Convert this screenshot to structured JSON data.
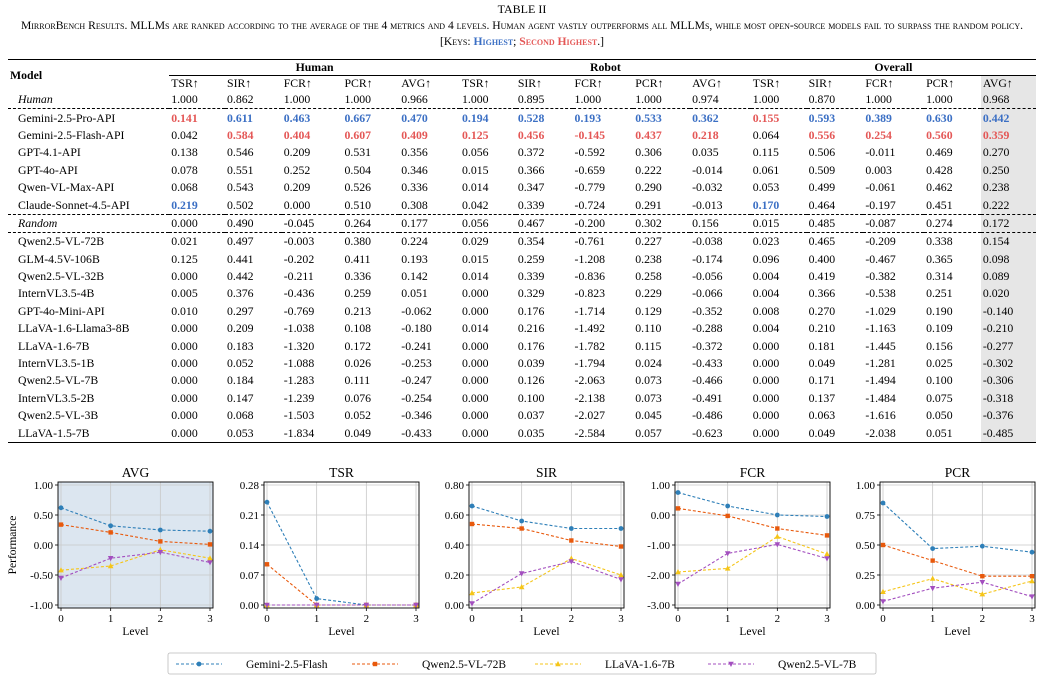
{
  "caption": {
    "label": "TABLE II",
    "text_main": "MirrorBench Results. MLLMs are ranked according to the average of the 4 metrics and 4 levels. Human agent vastly outperforms all MLLMs, while most open-source models fail to surpass the random policy. [Keys: ",
    "key_highest": "Highest",
    "key_sep": "; ",
    "key_second": "Second Highest",
    "key_end": ".]"
  },
  "table": {
    "model_header": "Model",
    "groups": [
      "Human",
      "Robot",
      "Overall"
    ],
    "metric_headers": [
      "TSR↑",
      "SIR↑",
      "FCR↑",
      "PCR↑",
      "AVG↑",
      "TSR↑",
      "SIR↑",
      "FCR↑",
      "PCR↑",
      "AVG↑",
      "TSR↑",
      "SIR↑",
      "FCR↑",
      "PCR↑",
      "AVG↑"
    ],
    "rows": [
      {
        "model": "Human",
        "italic": true,
        "dash": true,
        "values": [
          "1.000",
          "0.862",
          "1.000",
          "1.000",
          "0.966",
          "1.000",
          "0.895",
          "1.000",
          "1.000",
          "0.974",
          "1.000",
          "0.870",
          "1.000",
          "1.000",
          "0.968"
        ],
        "marks": [
          "",
          "",
          "",
          "",
          "",
          "",
          "",
          "",
          "",
          "",
          "",
          "",
          "",
          "",
          ""
        ]
      },
      {
        "model": "Gemini-2.5-Pro-API",
        "values": [
          "0.141",
          "0.611",
          "0.463",
          "0.667",
          "0.470",
          "0.194",
          "0.528",
          "0.193",
          "0.533",
          "0.362",
          "0.155",
          "0.593",
          "0.389",
          "0.630",
          "0.442"
        ],
        "marks": [
          "r",
          "b",
          "b",
          "b",
          "b",
          "b",
          "b",
          "b",
          "b",
          "b",
          "r",
          "b",
          "b",
          "b",
          "b"
        ]
      },
      {
        "model": "Gemini-2.5-Flash-API",
        "values": [
          "0.042",
          "0.584",
          "0.404",
          "0.607",
          "0.409",
          "0.125",
          "0.456",
          "-0.145",
          "0.437",
          "0.218",
          "0.064",
          "0.556",
          "0.254",
          "0.560",
          "0.359"
        ],
        "marks": [
          "",
          "r",
          "r",
          "r",
          "r",
          "r",
          "r",
          "r",
          "r",
          "r",
          "",
          "r",
          "r",
          "r",
          "r"
        ]
      },
      {
        "model": "GPT-4.1-API",
        "values": [
          "0.138",
          "0.546",
          "0.209",
          "0.531",
          "0.356",
          "0.056",
          "0.372",
          "-0.592",
          "0.306",
          "0.035",
          "0.115",
          "0.506",
          "-0.011",
          "0.469",
          "0.270"
        ],
        "marks": [
          "",
          "",
          "",
          "",
          "",
          "",
          "",
          "",
          "",
          "",
          "",
          "",
          "",
          "",
          ""
        ]
      },
      {
        "model": "GPT-4o-API",
        "values": [
          "0.078",
          "0.551",
          "0.252",
          "0.504",
          "0.346",
          "0.015",
          "0.366",
          "-0.659",
          "0.222",
          "-0.014",
          "0.061",
          "0.509",
          "0.003",
          "0.428",
          "0.250"
        ],
        "marks": [
          "",
          "",
          "",
          "",
          "",
          "",
          "",
          "",
          "",
          "",
          "",
          "",
          "",
          "",
          ""
        ]
      },
      {
        "model": "Qwen-VL-Max-API",
        "values": [
          "0.068",
          "0.543",
          "0.209",
          "0.526",
          "0.336",
          "0.014",
          "0.347",
          "-0.779",
          "0.290",
          "-0.032",
          "0.053",
          "0.499",
          "-0.061",
          "0.462",
          "0.238"
        ],
        "marks": [
          "",
          "",
          "",
          "",
          "",
          "",
          "",
          "",
          "",
          "",
          "",
          "",
          "",
          "",
          ""
        ]
      },
      {
        "model": "Claude-Sonnet-4.5-API",
        "dash": true,
        "values": [
          "0.219",
          "0.502",
          "0.000",
          "0.510",
          "0.308",
          "0.042",
          "0.339",
          "-0.724",
          "0.291",
          "-0.013",
          "0.170",
          "0.464",
          "-0.197",
          "0.451",
          "0.222"
        ],
        "marks": [
          "b",
          "",
          "",
          "",
          "",
          "",
          "",
          "",
          "",
          "",
          "b",
          "",
          "",
          "",
          ""
        ]
      },
      {
        "model": "Random",
        "italic": true,
        "dash": true,
        "values": [
          "0.000",
          "0.490",
          "-0.045",
          "0.264",
          "0.177",
          "0.056",
          "0.467",
          "-0.200",
          "0.302",
          "0.156",
          "0.015",
          "0.485",
          "-0.087",
          "0.274",
          "0.172"
        ],
        "marks": [
          "",
          "",
          "",
          "",
          "",
          "",
          "",
          "",
          "",
          "",
          "",
          "",
          "",
          "",
          ""
        ]
      },
      {
        "model": "Qwen2.5-VL-72B",
        "values": [
          "0.021",
          "0.497",
          "-0.003",
          "0.380",
          "0.224",
          "0.029",
          "0.354",
          "-0.761",
          "0.227",
          "-0.038",
          "0.023",
          "0.465",
          "-0.209",
          "0.338",
          "0.154"
        ],
        "marks": [
          "",
          "",
          "",
          "",
          "",
          "",
          "",
          "",
          "",
          "",
          "",
          "",
          "",
          "",
          ""
        ]
      },
      {
        "model": "GLM-4.5V-106B",
        "values": [
          "0.125",
          "0.441",
          "-0.202",
          "0.411",
          "0.193",
          "0.015",
          "0.259",
          "-1.208",
          "0.238",
          "-0.174",
          "0.096",
          "0.400",
          "-0.467",
          "0.365",
          "0.098"
        ],
        "marks": [
          "",
          "",
          "",
          "",
          "",
          "",
          "",
          "",
          "",
          "",
          "",
          "",
          "",
          "",
          ""
        ]
      },
      {
        "model": "Qwen2.5-VL-32B",
        "values": [
          "0.000",
          "0.442",
          "-0.211",
          "0.336",
          "0.142",
          "0.014",
          "0.339",
          "-0.836",
          "0.258",
          "-0.056",
          "0.004",
          "0.419",
          "-0.382",
          "0.314",
          "0.089"
        ],
        "marks": [
          "",
          "",
          "",
          "",
          "",
          "",
          "",
          "",
          "",
          "",
          "",
          "",
          "",
          "",
          ""
        ]
      },
      {
        "model": "InternVL3.5-4B",
        "values": [
          "0.005",
          "0.376",
          "-0.436",
          "0.259",
          "0.051",
          "0.000",
          "0.329",
          "-0.823",
          "0.229",
          "-0.066",
          "0.004",
          "0.366",
          "-0.538",
          "0.251",
          "0.020"
        ],
        "marks": [
          "",
          "",
          "",
          "",
          "",
          "",
          "",
          "",
          "",
          "",
          "",
          "",
          "",
          "",
          ""
        ]
      },
      {
        "model": "GPT-4o-Mini-API",
        "values": [
          "0.010",
          "0.297",
          "-0.769",
          "0.213",
          "-0.062",
          "0.000",
          "0.176",
          "-1.714",
          "0.129",
          "-0.352",
          "0.008",
          "0.270",
          "-1.029",
          "0.190",
          "-0.140"
        ],
        "marks": [
          "",
          "",
          "",
          "",
          "",
          "",
          "",
          "",
          "",
          "",
          "",
          "",
          "",
          "",
          ""
        ]
      },
      {
        "model": "LLaVA-1.6-Llama3-8B",
        "values": [
          "0.000",
          "0.209",
          "-1.038",
          "0.108",
          "-0.180",
          "0.014",
          "0.216",
          "-1.492",
          "0.110",
          "-0.288",
          "0.004",
          "0.210",
          "-1.163",
          "0.109",
          "-0.210"
        ],
        "marks": [
          "",
          "",
          "",
          "",
          "",
          "",
          "",
          "",
          "",
          "",
          "",
          "",
          "",
          "",
          ""
        ]
      },
      {
        "model": "LLaVA-1.6-7B",
        "values": [
          "0.000",
          "0.183",
          "-1.320",
          "0.172",
          "-0.241",
          "0.000",
          "0.176",
          "-1.782",
          "0.115",
          "-0.372",
          "0.000",
          "0.181",
          "-1.445",
          "0.156",
          "-0.277"
        ],
        "marks": [
          "",
          "",
          "",
          "",
          "",
          "",
          "",
          "",
          "",
          "",
          "",
          "",
          "",
          "",
          ""
        ]
      },
      {
        "model": "InternVL3.5-1B",
        "values": [
          "0.000",
          "0.052",
          "-1.088",
          "0.026",
          "-0.253",
          "0.000",
          "0.039",
          "-1.794",
          "0.024",
          "-0.433",
          "0.000",
          "0.049",
          "-1.281",
          "0.025",
          "-0.302"
        ],
        "marks": [
          "",
          "",
          "",
          "",
          "",
          "",
          "",
          "",
          "",
          "",
          "",
          "",
          "",
          "",
          ""
        ]
      },
      {
        "model": "Qwen2.5-VL-7B",
        "values": [
          "0.000",
          "0.184",
          "-1.283",
          "0.111",
          "-0.247",
          "0.000",
          "0.126",
          "-2.063",
          "0.073",
          "-0.466",
          "0.000",
          "0.171",
          "-1.494",
          "0.100",
          "-0.306"
        ],
        "marks": [
          "",
          "",
          "",
          "",
          "",
          "",
          "",
          "",
          "",
          "",
          "",
          "",
          "",
          "",
          ""
        ]
      },
      {
        "model": "InternVL3.5-2B",
        "values": [
          "0.000",
          "0.147",
          "-1.239",
          "0.076",
          "-0.254",
          "0.000",
          "0.100",
          "-2.138",
          "0.073",
          "-0.491",
          "0.000",
          "0.137",
          "-1.484",
          "0.075",
          "-0.318"
        ],
        "marks": [
          "",
          "",
          "",
          "",
          "",
          "",
          "",
          "",
          "",
          "",
          "",
          "",
          "",
          "",
          ""
        ]
      },
      {
        "model": "Qwen2.5-VL-3B",
        "values": [
          "0.000",
          "0.068",
          "-1.503",
          "0.052",
          "-0.346",
          "0.000",
          "0.037",
          "-2.027",
          "0.045",
          "-0.486",
          "0.000",
          "0.063",
          "-1.616",
          "0.050",
          "-0.376"
        ],
        "marks": [
          "",
          "",
          "",
          "",
          "",
          "",
          "",
          "",
          "",
          "",
          "",
          "",
          "",
          "",
          ""
        ]
      },
      {
        "model": "LLaVA-1.5-7B",
        "values": [
          "0.000",
          "0.053",
          "-1.834",
          "0.049",
          "-0.433",
          "0.000",
          "0.035",
          "-2.584",
          "0.057",
          "-0.623",
          "0.000",
          "0.049",
          "-2.038",
          "0.051",
          "-0.485"
        ],
        "marks": [
          "",
          "",
          "",
          "",
          "",
          "",
          "",
          "",
          "",
          "",
          "",
          "",
          "",
          "",
          ""
        ]
      }
    ]
  },
  "colors": {
    "highest": "#3b6fc4",
    "second": "#e45756",
    "avg_panel_bg": "#dce6f0",
    "avg_col_bg": "#e6e6e6"
  },
  "chart_data": [
    {
      "type": "line",
      "title": "AVG",
      "xlabel": "Level",
      "ylabel": "Performance",
      "x": [
        0,
        1,
        2,
        3
      ],
      "ylim": [
        -1.0,
        1.0
      ],
      "yticks": [
        "1.00",
        "0.50",
        "0.00",
        "-0.50",
        "-1.00"
      ],
      "ytick_values": [
        1.0,
        0.5,
        0.0,
        -0.5,
        -1.0
      ],
      "grid": true,
      "highlight_bg": true,
      "series": [
        {
          "name": "Gemini-2.5-Flash",
          "values": [
            0.62,
            0.32,
            0.25,
            0.23
          ]
        },
        {
          "name": "Qwen2.5-VL-72B",
          "values": [
            0.34,
            0.21,
            0.06,
            0.01
          ]
        },
        {
          "name": "LLaVA-1.6-7B",
          "values": [
            -0.42,
            -0.35,
            -0.08,
            -0.22
          ]
        },
        {
          "name": "Qwen2.5-VL-7B",
          "values": [
            -0.55,
            -0.22,
            -0.12,
            -0.29
          ]
        }
      ]
    },
    {
      "type": "line",
      "title": "TSR",
      "xlabel": "Level",
      "ylabel": "",
      "x": [
        0,
        1,
        2,
        3
      ],
      "ylim": [
        0.0,
        0.28
      ],
      "yticks": [
        "0.28",
        "0.21",
        "0.14",
        "0.07",
        "0.00"
      ],
      "ytick_values": [
        0.28,
        0.21,
        0.14,
        0.07,
        0.0
      ],
      "grid": true,
      "series": [
        {
          "name": "Gemini-2.5-Flash",
          "values": [
            0.24,
            0.015,
            0.0,
            0.0
          ]
        },
        {
          "name": "Qwen2.5-VL-72B",
          "values": [
            0.095,
            0.0,
            0.0,
            0.0
          ]
        },
        {
          "name": "LLaVA-1.6-7B",
          "values": [
            0.0,
            0.0,
            0.0,
            0.0
          ]
        },
        {
          "name": "Qwen2.5-VL-7B",
          "values": [
            0.0,
            0.0,
            0.0,
            0.0
          ]
        }
      ]
    },
    {
      "type": "line",
      "title": "SIR",
      "xlabel": "Level",
      "ylabel": "",
      "x": [
        0,
        1,
        2,
        3
      ],
      "ylim": [
        0.0,
        0.8
      ],
      "yticks": [
        "0.80",
        "0.60",
        "0.40",
        "0.20",
        "0.00"
      ],
      "ytick_values": [
        0.8,
        0.6,
        0.4,
        0.2,
        0.0
      ],
      "grid": true,
      "series": [
        {
          "name": "Gemini-2.5-Flash",
          "values": [
            0.66,
            0.56,
            0.51,
            0.51
          ]
        },
        {
          "name": "Qwen2.5-VL-72B",
          "values": [
            0.54,
            0.51,
            0.43,
            0.39
          ]
        },
        {
          "name": "LLaVA-1.6-7B",
          "values": [
            0.08,
            0.12,
            0.31,
            0.2
          ]
        },
        {
          "name": "Qwen2.5-VL-7B",
          "values": [
            0.01,
            0.21,
            0.29,
            0.17
          ]
        }
      ]
    },
    {
      "type": "line",
      "title": "FCR",
      "xlabel": "Level",
      "ylabel": "",
      "x": [
        0,
        1,
        2,
        3
      ],
      "ylim": [
        -3.0,
        1.0
      ],
      "yticks": [
        "1.00",
        "0.00",
        "-1.00",
        "-2.00",
        "-3.00"
      ],
      "ytick_values": [
        1.0,
        0.0,
        -1.0,
        -2.0,
        -3.0
      ],
      "grid": true,
      "series": [
        {
          "name": "Gemini-2.5-Flash",
          "values": [
            0.75,
            0.3,
            0.0,
            -0.05
          ]
        },
        {
          "name": "Qwen2.5-VL-72B",
          "values": [
            0.22,
            -0.03,
            -0.45,
            -0.68
          ]
        },
        {
          "name": "LLaVA-1.6-7B",
          "values": [
            -1.9,
            -1.78,
            -0.72,
            -1.3
          ]
        },
        {
          "name": "Qwen2.5-VL-7B",
          "values": [
            -2.3,
            -1.28,
            -0.98,
            -1.45
          ]
        }
      ]
    },
    {
      "type": "line",
      "title": "PCR",
      "xlabel": "Level",
      "ylabel": "",
      "x": [
        0,
        1,
        2,
        3
      ],
      "ylim": [
        0.0,
        1.0
      ],
      "yticks": [
        "1.00",
        "0.75",
        "0.50",
        "0.25",
        "0.00"
      ],
      "ytick_values": [
        1.0,
        0.75,
        0.5,
        0.25,
        0.0
      ],
      "grid": true,
      "series": [
        {
          "name": "Gemini-2.5-Flash",
          "values": [
            0.85,
            0.47,
            0.49,
            0.44
          ]
        },
        {
          "name": "Qwen2.5-VL-72B",
          "values": [
            0.5,
            0.37,
            0.24,
            0.24
          ]
        },
        {
          "name": "LLaVA-1.6-7B",
          "values": [
            0.11,
            0.22,
            0.09,
            0.2
          ]
        },
        {
          "name": "Qwen2.5-VL-7B",
          "values": [
            0.03,
            0.14,
            0.19,
            0.07
          ]
        }
      ]
    }
  ],
  "legend": {
    "placement": "bottom-center",
    "entries": [
      {
        "name": "Gemini-2.5-Flash",
        "color": "#2e7fb8",
        "marker": "circle"
      },
      {
        "name": "Qwen2.5-VL-72B",
        "color": "#e8590c",
        "marker": "square"
      },
      {
        "name": "LLaVA-1.6-7B",
        "color": "#f5c518",
        "marker": "triangle-up"
      },
      {
        "name": "Qwen2.5-VL-7B",
        "color": "#a34fbf",
        "marker": "triangle-down"
      }
    ]
  }
}
